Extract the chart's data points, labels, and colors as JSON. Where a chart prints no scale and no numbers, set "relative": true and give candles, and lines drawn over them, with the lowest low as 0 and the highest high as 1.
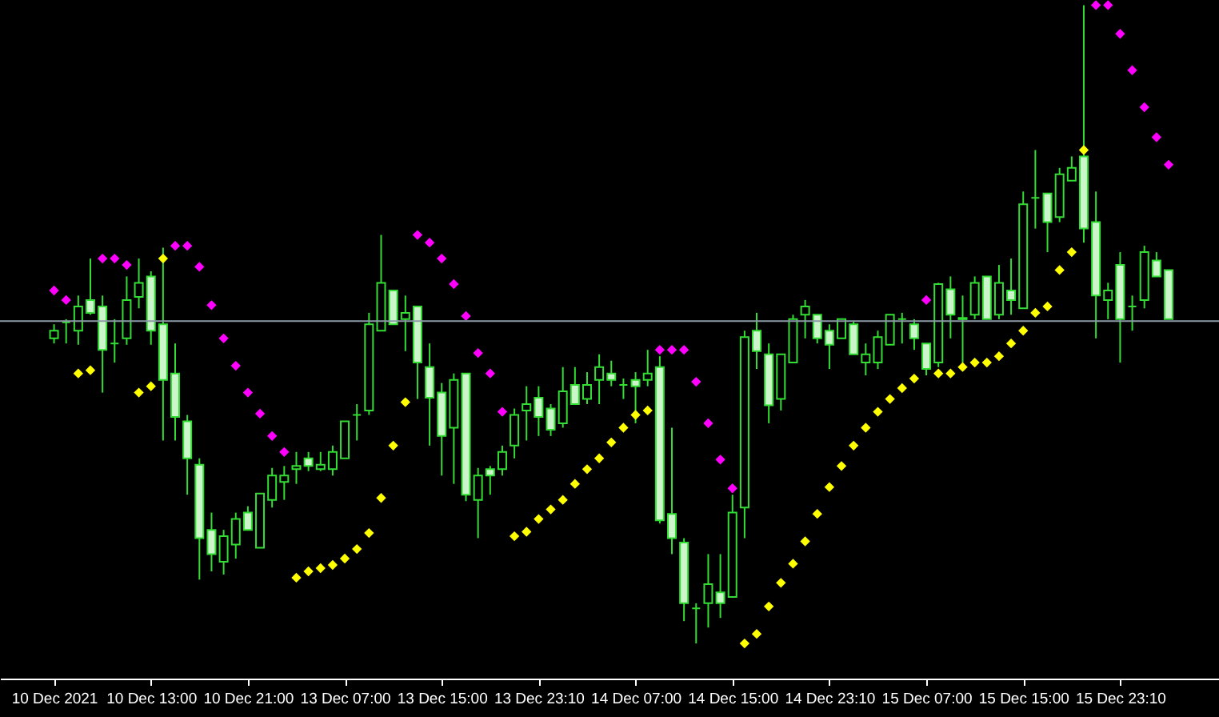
{
  "chart_data": {
    "type": "candlestick",
    "relative": true,
    "marker": "diamond",
    "grid": false,
    "categories": [
      "10 Dec 2021",
      null,
      null,
      null,
      null,
      null,
      null,
      null,
      "10 Dec 13:00",
      null,
      null,
      null,
      null,
      null,
      null,
      null,
      "10 Dec 21:00",
      null,
      null,
      null,
      null,
      null,
      null,
      null,
      "13 Dec 07:00",
      null,
      null,
      null,
      null,
      null,
      null,
      null,
      "13 Dec 15:00",
      null,
      null,
      null,
      null,
      null,
      null,
      null,
      "13 Dec 23:10",
      null,
      null,
      null,
      null,
      null,
      null,
      null,
      "14 Dec 07:00",
      null,
      null,
      null,
      null,
      null,
      null,
      null,
      "14 Dec 15:00",
      null,
      null,
      null,
      null,
      null,
      null,
      null,
      "14 Dec 23:10",
      null,
      null,
      null,
      null,
      null,
      null,
      null,
      "15 Dec 07:00",
      null,
      null,
      null,
      null,
      null,
      null,
      null,
      "15 Dec 15:00",
      null,
      null,
      null,
      null,
      null,
      null,
      null,
      "15 Dec 23:10",
      null,
      null,
      null,
      null
    ],
    "series": [
      {
        "color": "#33dd33",
        "ohlc": [
          [
            0.478,
            0.5,
            0.47,
            0.49
          ],
          [
            0.503,
            0.508,
            0.47,
            0.503
          ],
          [
            0.49,
            0.545,
            0.468,
            0.528
          ],
          [
            0.538,
            0.603,
            0.515,
            0.518
          ],
          [
            0.528,
            0.545,
            0.393,
            0.46
          ],
          [
            0.47,
            0.508,
            0.44,
            0.47
          ],
          [
            0.478,
            0.575,
            0.468,
            0.538
          ],
          [
            0.543,
            0.603,
            0.525,
            0.565
          ],
          [
            0.575,
            0.583,
            0.468,
            0.49
          ],
          [
            0.5,
            0.62,
            0.318,
            0.413
          ],
          [
            0.423,
            0.47,
            0.318,
            0.355
          ],
          [
            0.348,
            0.358,
            0.233,
            0.29
          ],
          [
            0.28,
            0.29,
            0.1,
            0.165
          ],
          [
            0.178,
            0.205,
            0.113,
            0.14
          ],
          [
            0.128,
            0.178,
            0.108,
            0.168
          ],
          [
            0.155,
            0.205,
            0.133,
            0.195
          ],
          [
            0.205,
            0.215,
            0.178,
            0.178
          ],
          [
            0.15,
            0.235,
            0.15,
            0.235
          ],
          [
            0.225,
            0.275,
            0.213,
            0.263
          ],
          [
            0.253,
            0.278,
            0.225,
            0.263
          ],
          [
            0.273,
            0.3,
            0.25,
            0.278
          ],
          [
            0.29,
            0.3,
            0.27,
            0.278
          ],
          [
            0.273,
            0.3,
            0.27,
            0.28
          ],
          [
            0.273,
            0.31,
            0.263,
            0.3
          ],
          [
            0.29,
            0.348,
            0.29,
            0.348
          ],
          [
            0.358,
            0.375,
            0.318,
            0.358
          ],
          [
            0.365,
            0.518,
            0.358,
            0.5
          ],
          [
            0.49,
            0.64,
            0.49,
            0.565
          ],
          [
            0.553,
            0.553,
            0.5,
            0.5
          ],
          [
            0.508,
            0.545,
            0.458,
            0.518
          ],
          [
            0.528,
            0.528,
            0.383,
            0.44
          ],
          [
            0.433,
            0.47,
            0.31,
            0.385
          ],
          [
            0.393,
            0.408,
            0.263,
            0.325
          ],
          [
            0.338,
            0.423,
            0.25,
            0.413
          ],
          [
            0.423,
            0.423,
            0.223,
            0.233
          ],
          [
            0.225,
            0.275,
            0.165,
            0.263
          ],
          [
            0.273,
            0.278,
            0.233,
            0.263
          ],
          [
            0.273,
            0.31,
            0.263,
            0.3
          ],
          [
            0.31,
            0.368,
            0.29,
            0.358
          ],
          [
            0.365,
            0.403,
            0.318,
            0.375
          ],
          [
            0.385,
            0.403,
            0.325,
            0.355
          ],
          [
            0.368,
            0.375,
            0.325,
            0.335
          ],
          [
            0.345,
            0.433,
            0.338,
            0.395
          ],
          [
            0.405,
            0.433,
            0.375,
            0.375
          ],
          [
            0.383,
            0.425,
            0.375,
            0.405
          ],
          [
            0.413,
            0.453,
            0.375,
            0.433
          ],
          [
            0.423,
            0.443,
            0.403,
            0.413
          ],
          [
            0.405,
            0.415,
            0.383,
            0.405
          ],
          [
            0.413,
            0.425,
            0.345,
            0.403
          ],
          [
            0.413,
            0.46,
            0.403,
            0.423
          ],
          [
            0.433,
            0.45,
            0.188,
            0.193
          ],
          [
            0.203,
            0.338,
            0.14,
            0.165
          ],
          [
            0.158,
            0.165,
            0.035,
            0.063
          ],
          [
            0.055,
            0.063,
            0.0,
            0.055
          ],
          [
            0.063,
            0.14,
            0.025,
            0.093
          ],
          [
            0.08,
            0.14,
            0.04,
            0.063
          ],
          [
            0.073,
            0.233,
            0.073,
            0.205
          ],
          [
            0.213,
            0.49,
            0.165,
            0.48
          ],
          [
            0.49,
            0.518,
            0.43,
            0.458
          ],
          [
            0.453,
            0.47,
            0.345,
            0.373
          ],
          [
            0.383,
            0.453,
            0.365,
            0.453
          ],
          [
            0.44,
            0.515,
            0.44,
            0.508
          ],
          [
            0.515,
            0.538,
            0.478,
            0.528
          ],
          [
            0.515,
            0.515,
            0.47,
            0.478
          ],
          [
            0.49,
            0.5,
            0.43,
            0.468
          ],
          [
            0.478,
            0.508,
            0.478,
            0.508
          ],
          [
            0.5,
            0.505,
            0.453,
            0.453
          ],
          [
            0.44,
            0.47,
            0.42,
            0.453
          ],
          [
            0.44,
            0.49,
            0.43,
            0.48
          ],
          [
            0.468,
            0.515,
            0.468,
            0.515
          ],
          [
            0.508,
            0.518,
            0.47,
            0.508
          ],
          [
            0.5,
            0.508,
            0.46,
            0.478
          ],
          [
            0.47,
            0.47,
            0.42,
            0.43
          ],
          [
            0.44,
            0.565,
            0.433,
            0.563
          ],
          [
            0.555,
            0.575,
            0.478,
            0.515
          ],
          [
            0.508,
            0.545,
            0.44,
            0.51
          ],
          [
            0.515,
            0.575,
            0.508,
            0.565
          ],
          [
            0.575,
            0.575,
            0.508,
            0.508
          ],
          [
            0.515,
            0.593,
            0.508,
            0.565
          ],
          [
            0.553,
            0.603,
            0.515,
            0.538
          ],
          [
            0.525,
            0.708,
            0.525,
            0.688
          ],
          [
            0.698,
            0.773,
            0.65,
            0.698
          ],
          [
            0.705,
            0.705,
            0.613,
            0.66
          ],
          [
            0.668,
            0.745,
            0.66,
            0.735
          ],
          [
            0.725,
            0.763,
            0.725,
            0.745
          ],
          [
            0.763,
            1.0,
            0.628,
            0.65
          ],
          [
            0.66,
            0.708,
            0.478,
            0.545
          ],
          [
            0.538,
            0.565,
            0.508,
            0.553
          ],
          [
            0.593,
            0.613,
            0.44,
            0.508
          ],
          [
            0.528,
            0.545,
            0.49,
            0.528
          ],
          [
            0.538,
            0.623,
            0.525,
            0.613
          ],
          [
            0.6,
            0.613,
            0.575,
            0.575
          ],
          [
            0.585,
            0.585,
            0.508,
            0.508
          ]
        ]
      },
      {
        "type": "scatter",
        "color": "#ff00ff",
        "values": [
          0.553,
          0.538,
          null,
          null,
          0.603,
          0.603,
          0.593,
          null,
          null,
          null,
          0.623,
          0.623,
          0.59,
          0.53,
          0.478,
          0.435,
          0.393,
          0.36,
          0.325,
          0.3,
          null,
          null,
          null,
          null,
          null,
          null,
          null,
          null,
          null,
          null,
          0.64,
          0.628,
          0.603,
          0.563,
          0.513,
          0.455,
          0.423,
          0.363,
          null,
          null,
          null,
          null,
          null,
          null,
          null,
          null,
          null,
          null,
          null,
          null,
          0.46,
          0.46,
          0.46,
          0.41,
          0.345,
          0.288,
          0.243,
          null,
          null,
          null,
          null,
          null,
          null,
          null,
          null,
          null,
          null,
          null,
          null,
          null,
          null,
          null,
          0.538,
          null,
          null,
          null,
          null,
          null,
          null,
          null,
          null,
          null,
          null,
          null,
          null,
          null,
          1.0,
          1.0,
          0.955,
          0.898,
          0.84,
          0.793,
          0.75
        ]
      },
      {
        "type": "scatter",
        "color": "#ffff00",
        "values": [
          null,
          null,
          0.423,
          0.428,
          null,
          null,
          null,
          0.393,
          0.403,
          0.603,
          null,
          null,
          null,
          null,
          null,
          null,
          null,
          null,
          null,
          null,
          0.103,
          0.113,
          0.118,
          0.123,
          0.133,
          0.148,
          0.173,
          0.228,
          0.31,
          0.378,
          null,
          null,
          null,
          null,
          null,
          null,
          null,
          null,
          0.168,
          0.175,
          0.195,
          0.21,
          0.225,
          0.25,
          0.273,
          0.29,
          0.315,
          0.338,
          0.358,
          0.365,
          null,
          null,
          null,
          null,
          null,
          null,
          null,
          0.0,
          0.015,
          0.058,
          0.095,
          0.125,
          0.16,
          0.203,
          0.245,
          0.278,
          0.31,
          0.338,
          0.363,
          0.383,
          0.4,
          0.415,
          null,
          0.423,
          0.423,
          0.433,
          0.44,
          0.44,
          0.45,
          0.47,
          0.49,
          0.518,
          0.528,
          0.585,
          0.613,
          0.773,
          null,
          null,
          null,
          null,
          null,
          null,
          null
        ]
      }
    ],
    "ref_lines": [
      {
        "axis": "y",
        "value": 0.505,
        "color": "#8c9aa8"
      }
    ]
  }
}
